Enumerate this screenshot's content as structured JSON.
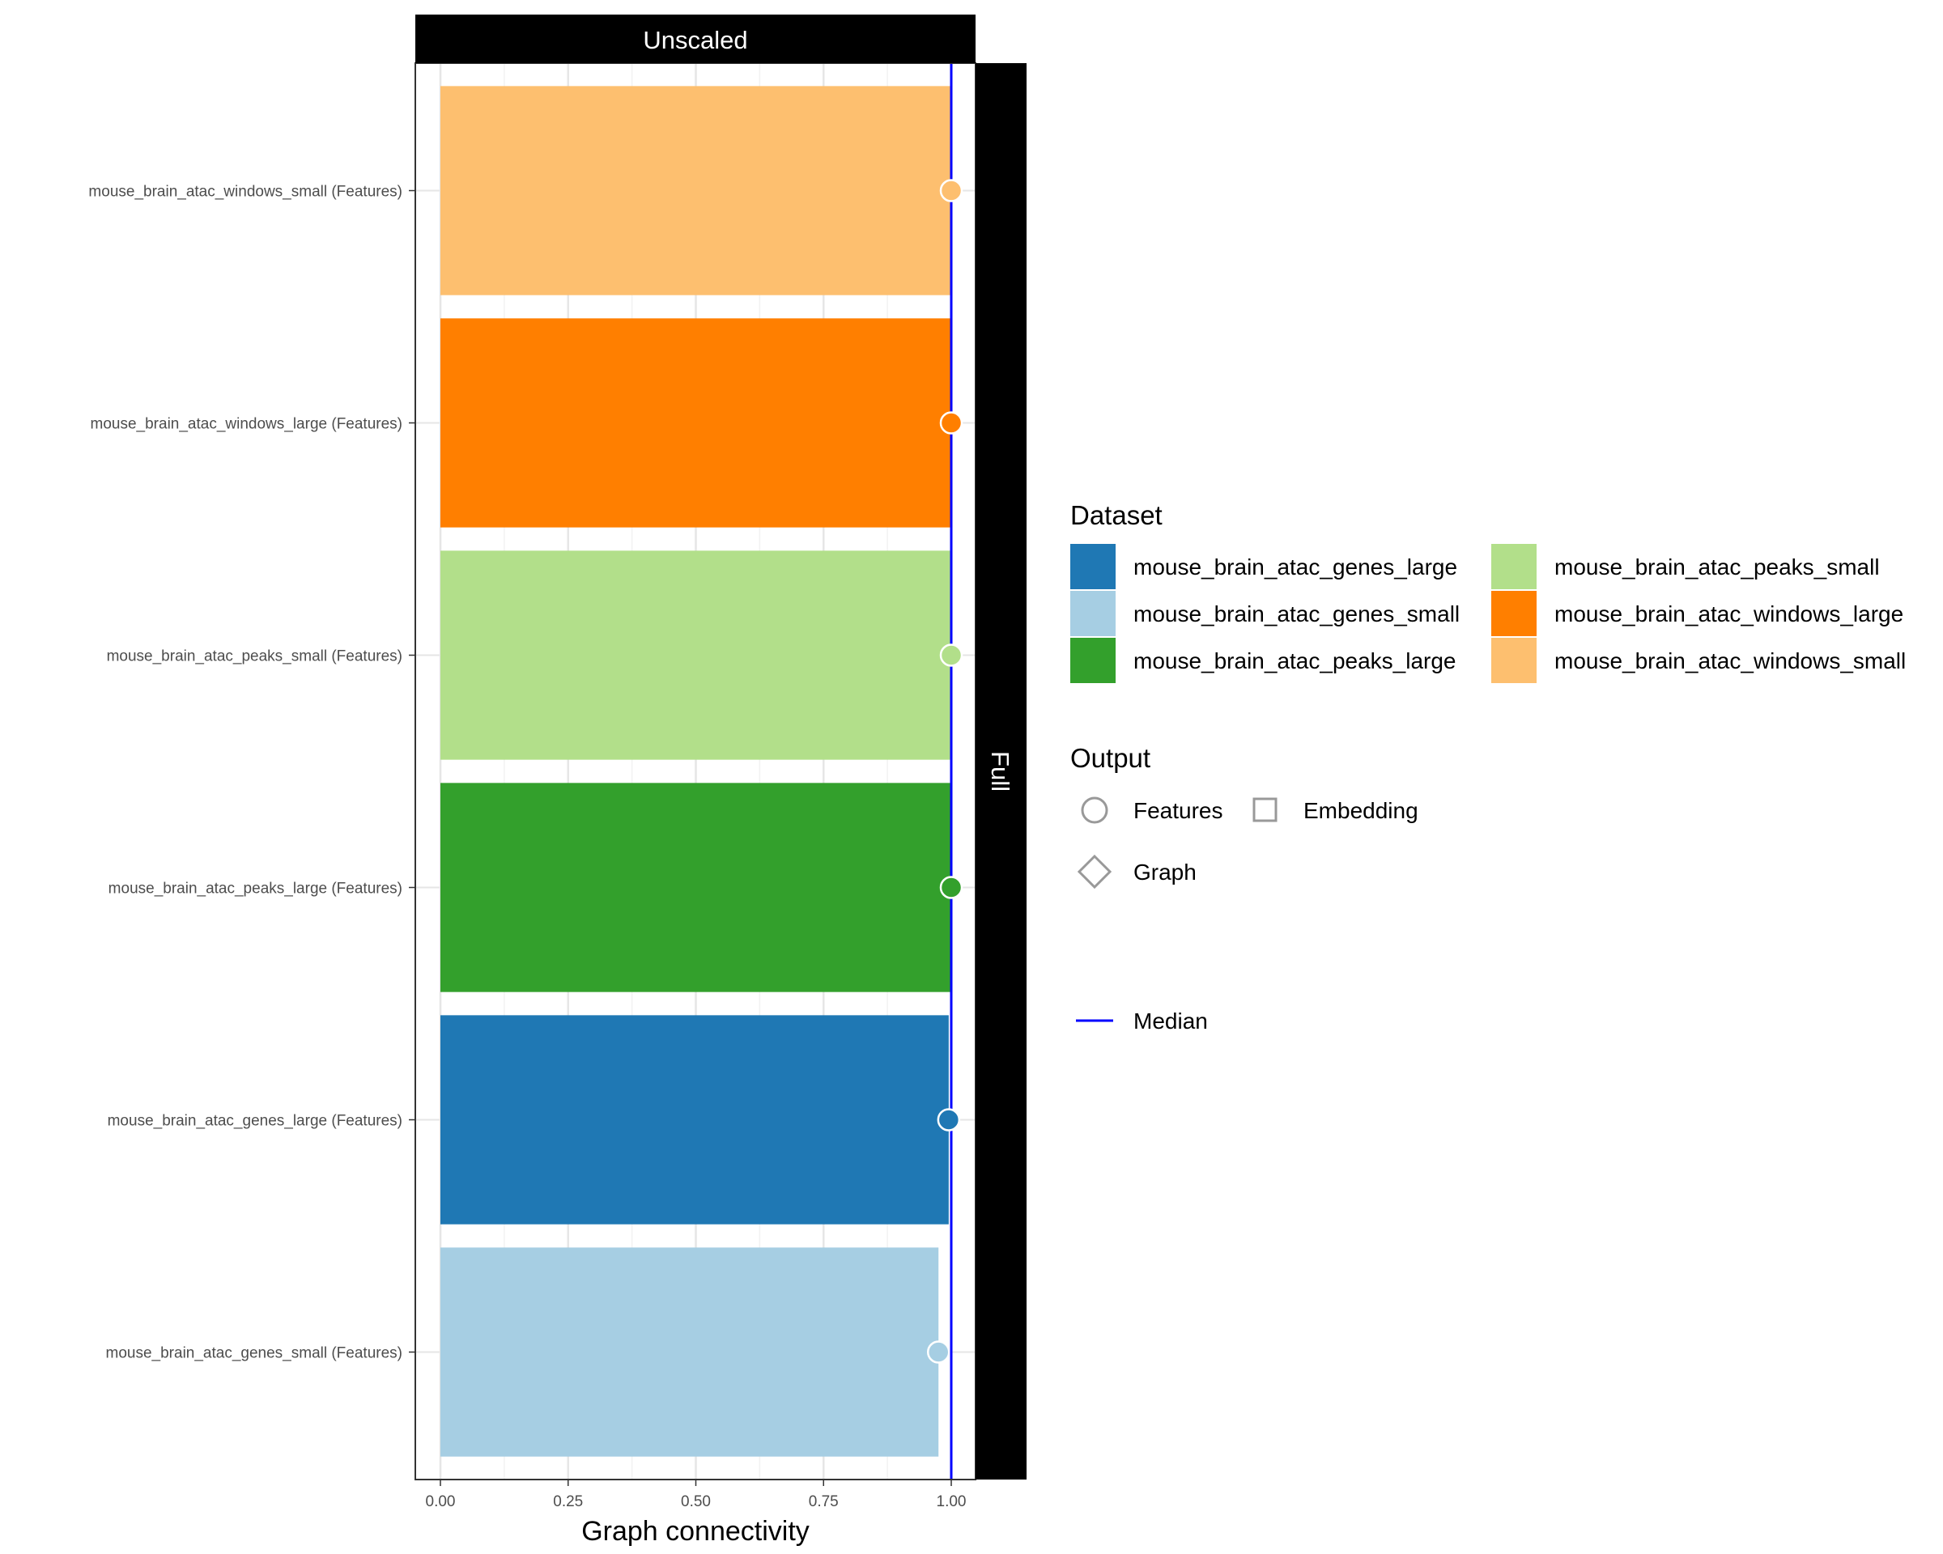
{
  "chart_data": {
    "type": "bar",
    "facet_top": "Unscaled",
    "facet_right": "Full",
    "xlabel": "Graph connectivity",
    "xlim": [
      0,
      1.05
    ],
    "xticks": [
      "0.00",
      "0.25",
      "0.50",
      "0.75",
      "1.00"
    ],
    "categories": [
      "mouse_brain_atac_windows_small (Features)",
      "mouse_brain_atac_windows_large (Features)",
      "mouse_brain_atac_peaks_small (Features)",
      "mouse_brain_atac_peaks_large (Features)",
      "mouse_brain_atac_genes_large (Features)",
      "mouse_brain_atac_genes_small (Features)"
    ],
    "values": [
      1.0,
      1.0,
      1.0,
      1.0,
      0.995,
      0.975
    ],
    "datasets": [
      "mouse_brain_atac_windows_small",
      "mouse_brain_atac_windows_large",
      "mouse_brain_atac_peaks_small",
      "mouse_brain_atac_peaks_large",
      "mouse_brain_atac_genes_large",
      "mouse_brain_atac_genes_small"
    ],
    "median": 1.0,
    "grid": true,
    "legend_position": "right"
  },
  "legend": {
    "dataset_title": "Dataset",
    "datasets": [
      {
        "label": "mouse_brain_atac_genes_large",
        "color": "#1F78B4"
      },
      {
        "label": "mouse_brain_atac_genes_small",
        "color": "#A6CEE3"
      },
      {
        "label": "mouse_brain_atac_peaks_large",
        "color": "#33A02C"
      },
      {
        "label": "mouse_brain_atac_peaks_small",
        "color": "#B2DF8A"
      },
      {
        "label": "mouse_brain_atac_windows_large",
        "color": "#FF7F00"
      },
      {
        "label": "mouse_brain_atac_windows_small",
        "color": "#FDBF6F"
      }
    ],
    "output_title": "Output",
    "outputs": [
      {
        "label": "Features",
        "shape": "circle"
      },
      {
        "label": "Embedding",
        "shape": "square"
      },
      {
        "label": "Graph",
        "shape": "diamond"
      }
    ],
    "median_label": "Median",
    "median_color": "#0000FF"
  }
}
